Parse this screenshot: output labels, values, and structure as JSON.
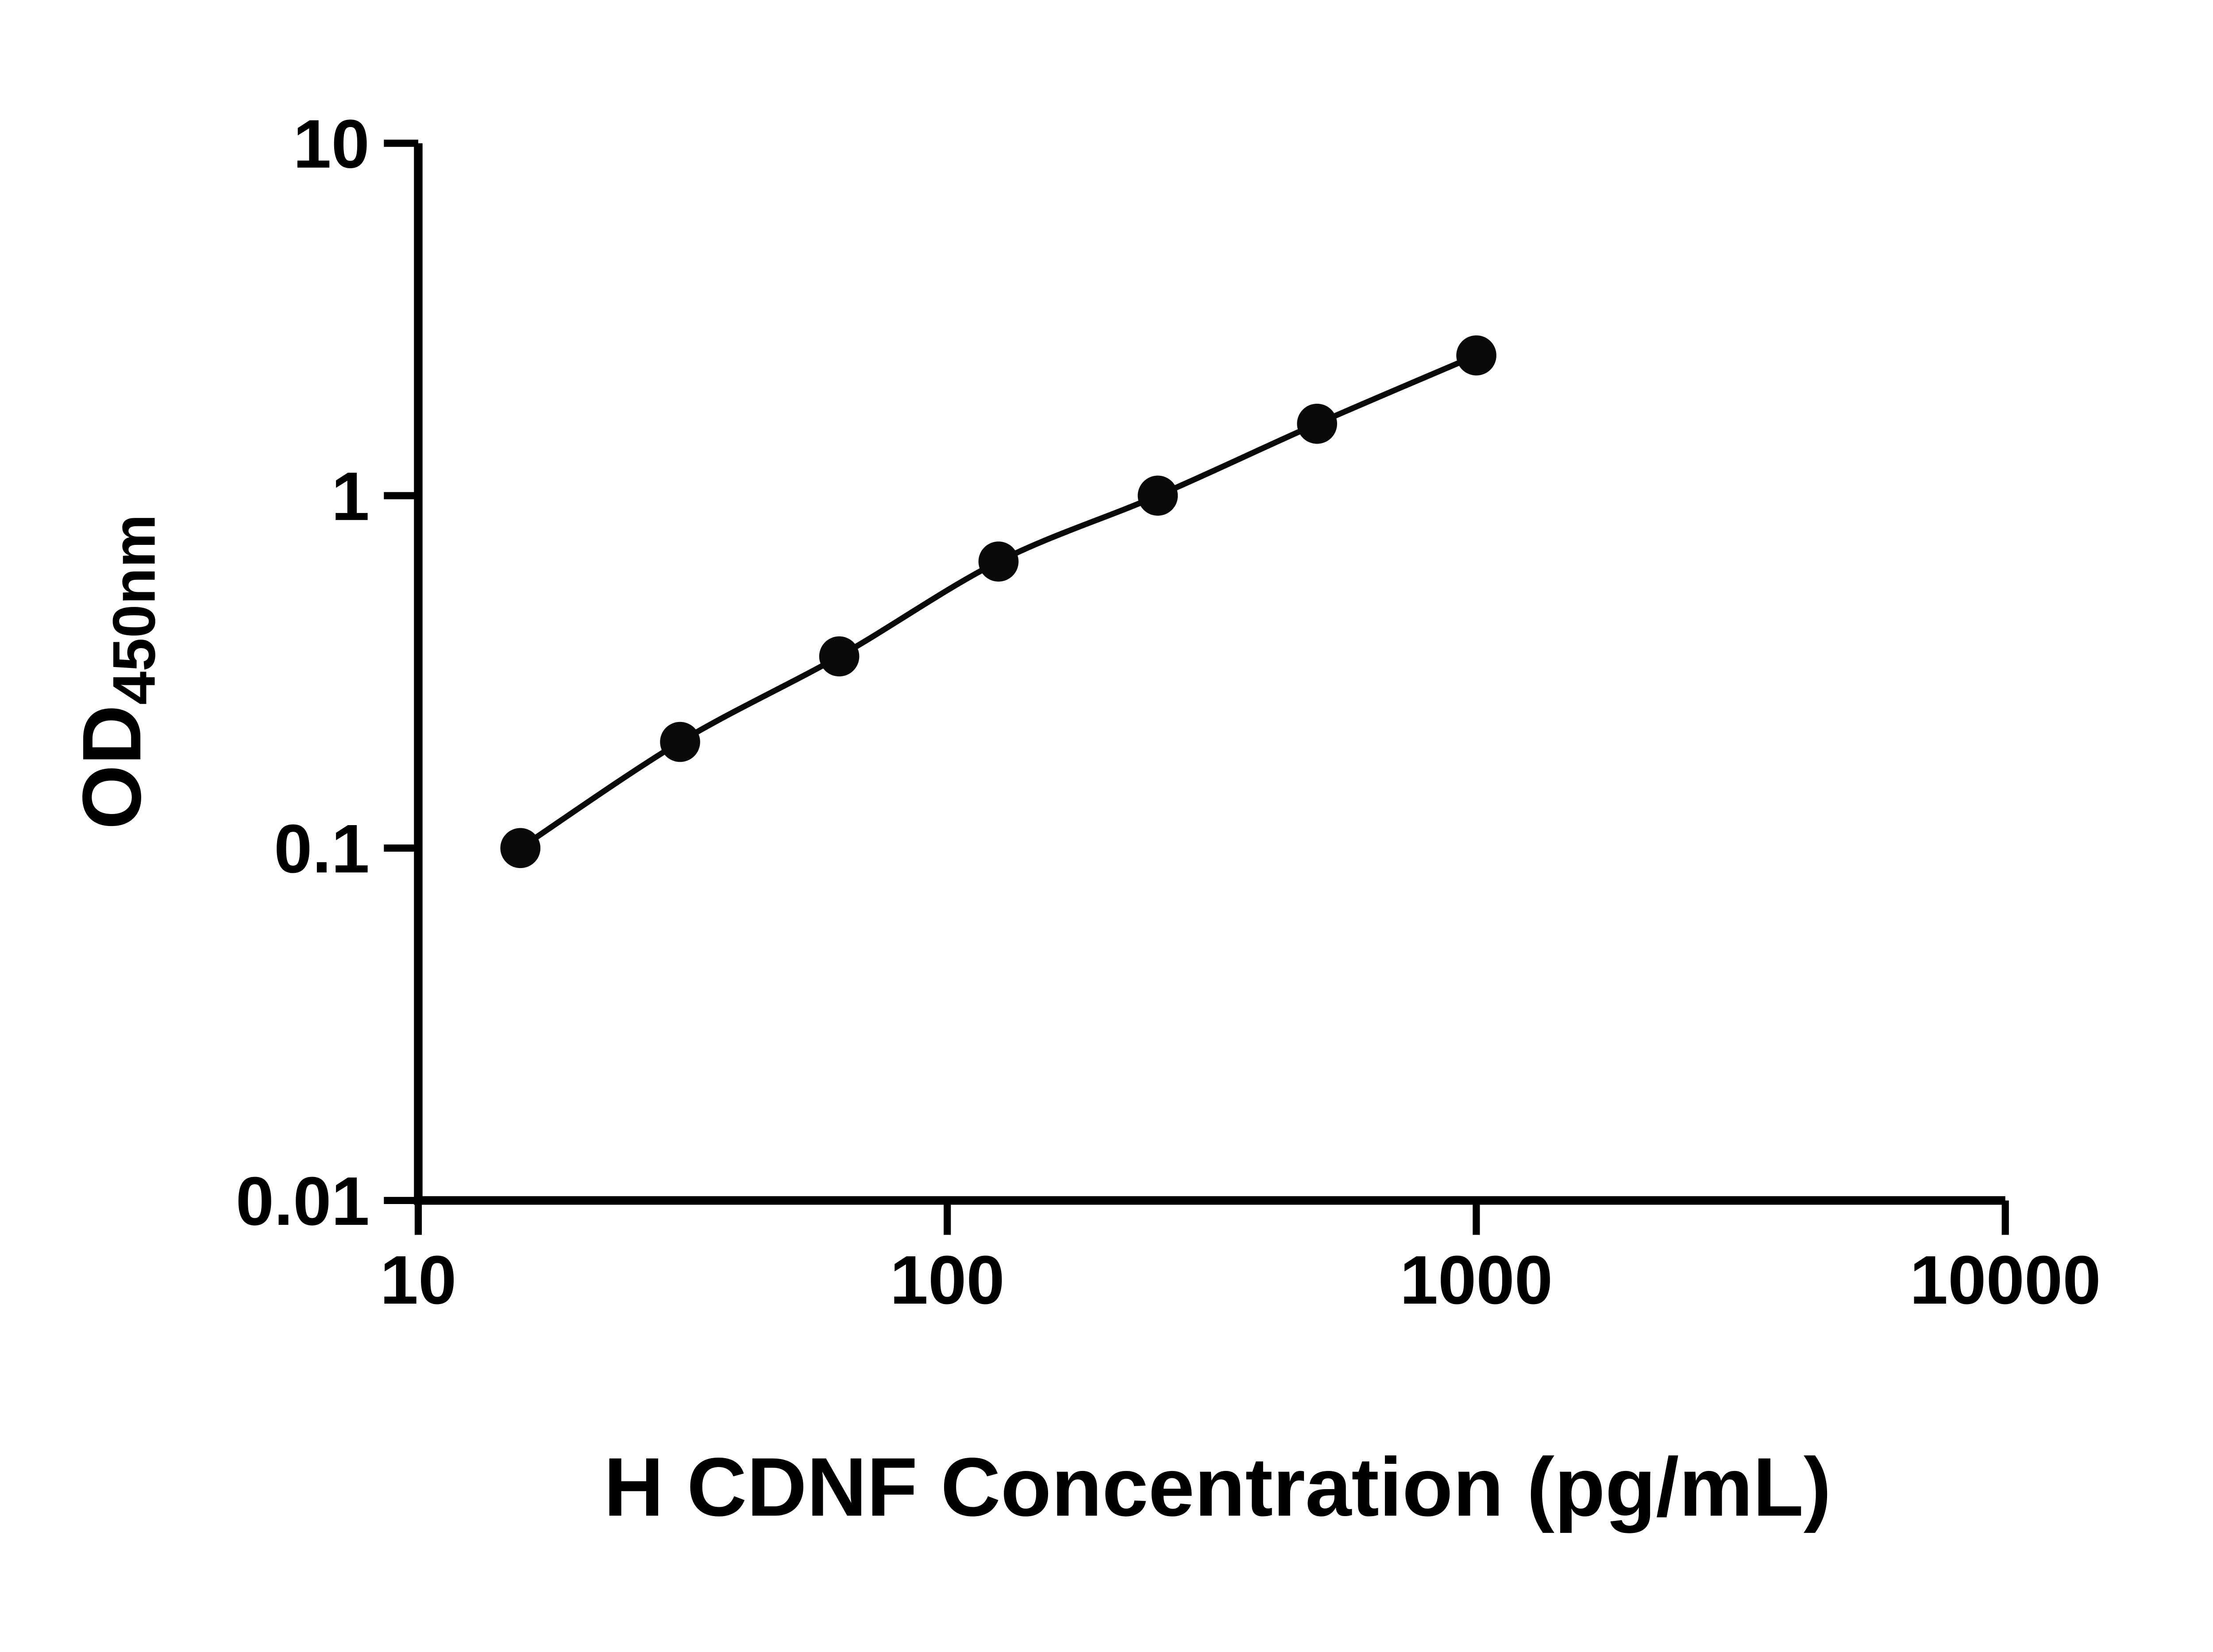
{
  "chart_data": {
    "type": "scatter",
    "title": "",
    "xlabel": "H CDNF Concentration (pg/mL)",
    "ylabel_main": "OD",
    "ylabel_sub": "450nm",
    "xscale": "log",
    "yscale": "log",
    "xlim": [
      10,
      10000
    ],
    "ylim": [
      0.01,
      10
    ],
    "xticks": [
      10,
      100,
      1000,
      10000
    ],
    "xtick_labels": [
      "10",
      "100",
      "1000",
      "10000"
    ],
    "yticks": [
      0.01,
      0.1,
      1,
      10
    ],
    "ytick_labels": [
      "0.01",
      "0.1",
      "1",
      "10"
    ],
    "grid": "off",
    "legend": "none",
    "series": [
      {
        "name": "standard-curve",
        "x": [
          15.6,
          31.25,
          62.5,
          125,
          250,
          500,
          1000
        ],
        "y": [
          0.1,
          0.2,
          0.35,
          0.65,
          1.0,
          1.6,
          2.5
        ]
      }
    ],
    "marker_color": "#0a0a0a",
    "line_color": "#0a0a0a",
    "axis_color": "#000000"
  }
}
